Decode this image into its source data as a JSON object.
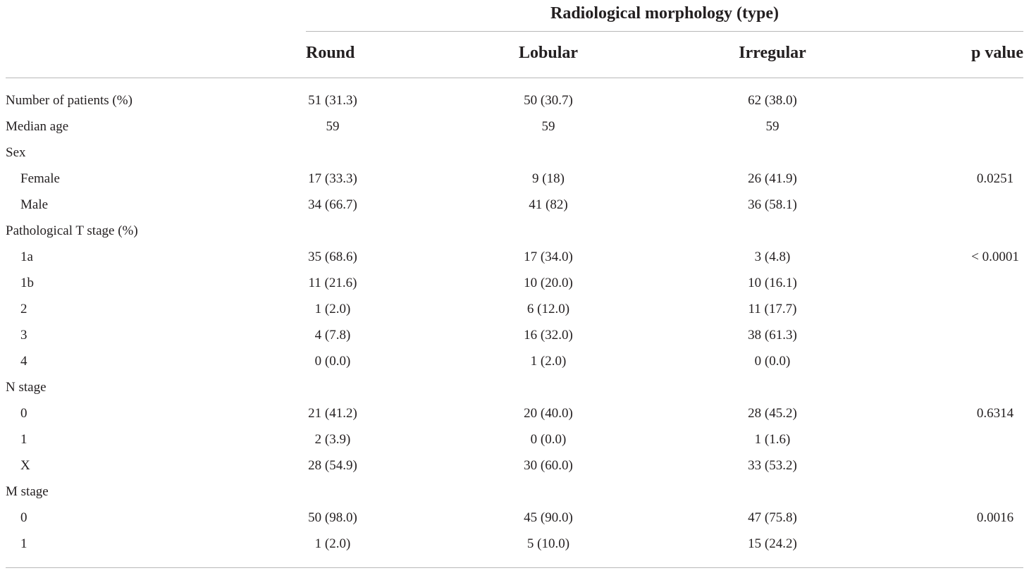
{
  "table": {
    "group_header": "Radiological morphology (type)",
    "columns": {
      "round": "Round",
      "lobular": "Lobular",
      "irregular": "Irregular",
      "p_value": "p value"
    },
    "rows": [
      {
        "label": "Number of patients (%)",
        "indent": false,
        "round": "51 (31.3)",
        "lobular": "50 (30.7)",
        "irregular": "62 (38.0)",
        "p": ""
      },
      {
        "label": "Median age",
        "indent": false,
        "round": "59",
        "lobular": "59",
        "irregular": "59",
        "p": ""
      },
      {
        "label": "Sex",
        "indent": false,
        "round": "",
        "lobular": "",
        "irregular": "",
        "p": ""
      },
      {
        "label": "Female",
        "indent": true,
        "round": "17 (33.3)",
        "lobular": "9 (18)",
        "irregular": "26 (41.9)",
        "p": "0.0251"
      },
      {
        "label": "Male",
        "indent": true,
        "round": "34 (66.7)",
        "lobular": "41 (82)",
        "irregular": "36 (58.1)",
        "p": ""
      },
      {
        "label": "Pathological T stage (%)",
        "indent": false,
        "round": "",
        "lobular": "",
        "irregular": "",
        "p": ""
      },
      {
        "label": "1a",
        "indent": true,
        "round": "35 (68.6)",
        "lobular": "17 (34.0)",
        "irregular": "3 (4.8)",
        "p": "< 0.0001"
      },
      {
        "label": "1b",
        "indent": true,
        "round": "11 (21.6)",
        "lobular": "10 (20.0)",
        "irregular": "10 (16.1)",
        "p": ""
      },
      {
        "label": "2",
        "indent": true,
        "round": "1 (2.0)",
        "lobular": "6 (12.0)",
        "irregular": "11 (17.7)",
        "p": ""
      },
      {
        "label": "3",
        "indent": true,
        "round": "4 (7.8)",
        "lobular": "16 (32.0)",
        "irregular": "38 (61.3)",
        "p": ""
      },
      {
        "label": "4",
        "indent": true,
        "round": "0 (0.0)",
        "lobular": "1 (2.0)",
        "irregular": "0 (0.0)",
        "p": ""
      },
      {
        "label": "N stage",
        "indent": false,
        "round": "",
        "lobular": "",
        "irregular": "",
        "p": ""
      },
      {
        "label": "0",
        "indent": true,
        "round": "21 (41.2)",
        "lobular": "20 (40.0)",
        "irregular": "28 (45.2)",
        "p": "0.6314"
      },
      {
        "label": "1",
        "indent": true,
        "round": "2 (3.9)",
        "lobular": "0 (0.0)",
        "irregular": "1 (1.6)",
        "p": ""
      },
      {
        "label": "X",
        "indent": true,
        "round": "28 (54.9)",
        "lobular": "30 (60.0)",
        "irregular": "33 (53.2)",
        "p": ""
      },
      {
        "label": "M stage",
        "indent": false,
        "round": "",
        "lobular": "",
        "irregular": "",
        "p": ""
      },
      {
        "label": "0",
        "indent": true,
        "round": "50 (98.0)",
        "lobular": "45 (90.0)",
        "irregular": "47 (75.8)",
        "p": "0.0016"
      },
      {
        "label": "1",
        "indent": true,
        "round": "1 (2.0)",
        "lobular": "5 (10.0)",
        "irregular": "15 (24.2)",
        "p": ""
      }
    ]
  }
}
